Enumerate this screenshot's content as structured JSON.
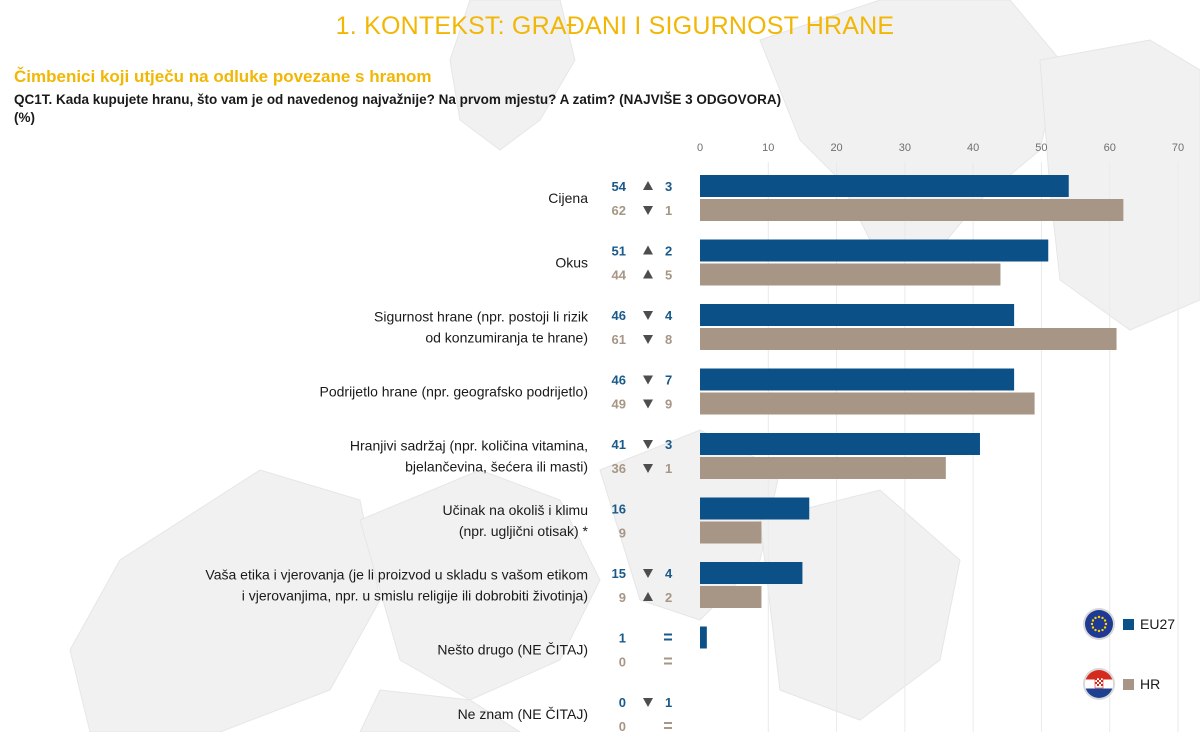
{
  "page": {
    "title": "1. KONTEKST: GRAĐANI I SIGURNOST HRANE",
    "subtitle": "Čimbenici koji utječu na odluke povezane s hranom",
    "question": "QC1T. Kada kupujete hranu, što vam je od navedenog najvažnije? Na prvom mjestu? A zatim? (NAJVIŠE 3 ODGOVORA)",
    "unit": "(%)"
  },
  "colors": {
    "title": "#f2b705",
    "eu27": "#0c5088",
    "hr": "#a79685",
    "eu27_text": "#1a5a8a",
    "hr_text": "#a79685"
  },
  "legend": {
    "eu27": {
      "label": "EU27",
      "icon": "eu-flag-icon"
    },
    "hr": {
      "label": "HR",
      "icon": "croatia-flag-icon"
    }
  },
  "chart_data": {
    "type": "bar",
    "orientation": "horizontal",
    "xlim": [
      0,
      70
    ],
    "xticks": [
      0,
      10,
      20,
      30,
      40,
      50,
      60,
      70
    ],
    "series": [
      {
        "name": "EU27",
        "values": [
          54,
          51,
          46,
          46,
          41,
          16,
          15,
          1,
          0
        ]
      },
      {
        "name": "HR",
        "values": [
          62,
          44,
          61,
          49,
          36,
          9,
          9,
          0,
          0
        ]
      }
    ],
    "categories": [
      {
        "lines": [
          "Cijena"
        ],
        "eu": {
          "value": "54",
          "trend": "up",
          "change": "3"
        },
        "hr": {
          "value": "62",
          "trend": "down",
          "change": "1"
        }
      },
      {
        "lines": [
          "Okus"
        ],
        "eu": {
          "value": "51",
          "trend": "up",
          "change": "2"
        },
        "hr": {
          "value": "44",
          "trend": "up",
          "change": "5"
        }
      },
      {
        "lines": [
          "Sigurnost hrane (npr. postoji li rizik",
          "od konzumiranja te hrane)"
        ],
        "eu": {
          "value": "46",
          "trend": "down",
          "change": "4"
        },
        "hr": {
          "value": "61",
          "trend": "down",
          "change": "8"
        }
      },
      {
        "lines": [
          "Podrijetlo hrane (npr. geografsko podrijetlo)"
        ],
        "eu": {
          "value": "46",
          "trend": "down",
          "change": "7"
        },
        "hr": {
          "value": "49",
          "trend": "down",
          "change": "9"
        }
      },
      {
        "lines": [
          "Hranjivi sadržaj (npr. količina vitamina,",
          "bjelančevina, šećera ili masti)"
        ],
        "eu": {
          "value": "41",
          "trend": "down",
          "change": "3"
        },
        "hr": {
          "value": "36",
          "trend": "down",
          "change": "1"
        }
      },
      {
        "lines": [
          "Učinak na okoliš i klimu",
          "(npr. ugljični otisak) *"
        ],
        "eu": {
          "value": "16",
          "trend": "",
          "change": ""
        },
        "hr": {
          "value": "9",
          "trend": "",
          "change": ""
        }
      },
      {
        "lines": [
          "Vaša etika i vjerovanja (je li proizvod u skladu s vašom etikom",
          "i vjerovanjima, npr. u smislu religije ili dobrobiti životinja)"
        ],
        "eu": {
          "value": "15",
          "trend": "down",
          "change": "4"
        },
        "hr": {
          "value": "9",
          "trend": "up",
          "change": "2"
        }
      },
      {
        "lines": [
          "Nešto drugo (NE ČITAJ)"
        ],
        "eu": {
          "value": "1",
          "trend": "equal",
          "change": ""
        },
        "hr": {
          "value": "0",
          "trend": "equal",
          "change": ""
        }
      },
      {
        "lines": [
          "Ne znam (NE ČITAJ)"
        ],
        "eu": {
          "value": "0",
          "trend": "down",
          "change": "1"
        },
        "hr": {
          "value": "0",
          "trend": "equal",
          "change": ""
        }
      }
    ]
  }
}
